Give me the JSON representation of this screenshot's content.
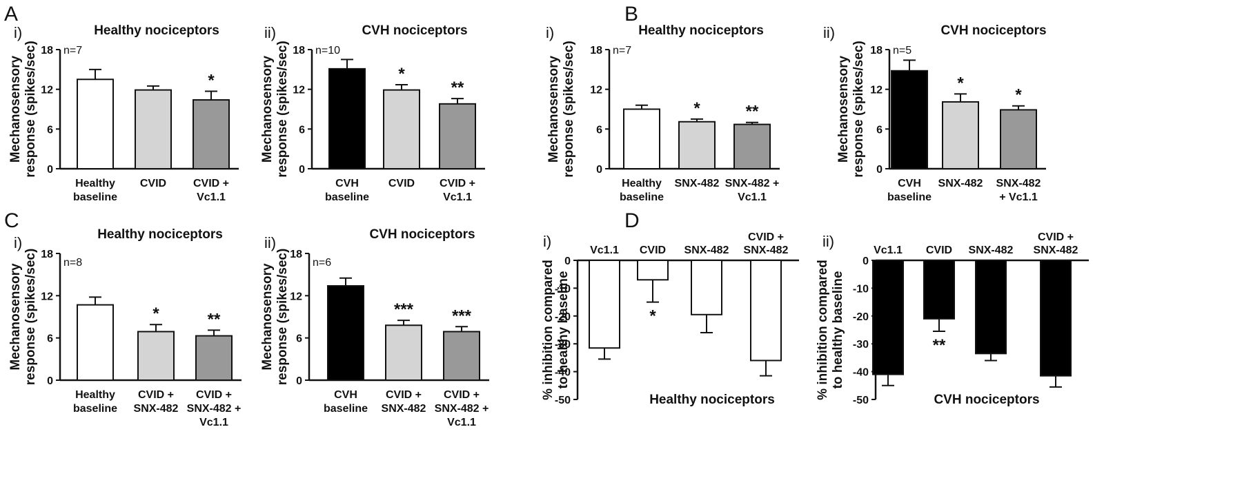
{
  "panel_letters": [
    "A",
    "B",
    "C",
    "D"
  ],
  "chart_data": [
    {
      "id": "A-i",
      "type": "bar",
      "panel": "A",
      "sub": "i)",
      "title": "Healthy nociceptors",
      "ylabel": [
        "Mechanosensory",
        "response (spikes/sec)"
      ],
      "ylim": [
        0,
        18
      ],
      "yticks": [
        0,
        6,
        12,
        18
      ],
      "n_label": "n=7",
      "categories": [
        [
          "Healthy",
          "baseline"
        ],
        [
          "CVID"
        ],
        [
          "CVID +",
          "Vc1.1"
        ]
      ],
      "values": [
        13.5,
        11.9,
        10.4
      ],
      "errors": [
        1.5,
        0.6,
        1.3
      ],
      "colors": [
        "#ffffff",
        "#d4d4d4",
        "#999999"
      ],
      "significance": [
        "",
        "",
        "*"
      ]
    },
    {
      "id": "A-ii",
      "type": "bar",
      "panel": "",
      "sub": "ii)",
      "title": "CVH nociceptors",
      "ylabel": [
        "Mechanosensory",
        "response (spikes/sec)"
      ],
      "ylim": [
        0,
        18
      ],
      "yticks": [
        0,
        6,
        12,
        18
      ],
      "n_label": "n=10",
      "categories": [
        [
          "CVH",
          "baseline"
        ],
        [
          "CVID"
        ],
        [
          "CVID +",
          "Vc1.1"
        ]
      ],
      "values": [
        15.1,
        11.9,
        9.8
      ],
      "errors": [
        1.4,
        0.8,
        0.8
      ],
      "colors": [
        "#000000",
        "#d4d4d4",
        "#999999"
      ],
      "significance": [
        "",
        "*",
        "**"
      ]
    },
    {
      "id": "B-i",
      "type": "bar",
      "panel": "B",
      "sub": "i)",
      "title": "Healthy nociceptors",
      "ylabel": [
        "Mechanosensory",
        "response (spikes/sec)"
      ],
      "ylim": [
        0,
        18
      ],
      "yticks": [
        0,
        6,
        12,
        18
      ],
      "n_label": "n=7",
      "categories": [
        [
          "Healthy",
          "baseline"
        ],
        [
          "SNX-482"
        ],
        [
          "SNX-482 +",
          "Vc1.1"
        ]
      ],
      "values": [
        9.0,
        7.1,
        6.7
      ],
      "errors": [
        0.6,
        0.4,
        0.3
      ],
      "colors": [
        "#ffffff",
        "#d4d4d4",
        "#999999"
      ],
      "significance": [
        "",
        "*",
        "**"
      ]
    },
    {
      "id": "B-ii",
      "type": "bar",
      "panel": "",
      "sub": "ii)",
      "title": "CVH nociceptors",
      "ylabel": [
        "Mechanosensory",
        "response (spikes/sec)"
      ],
      "ylim": [
        0,
        18
      ],
      "yticks": [
        0,
        6,
        12,
        18
      ],
      "n_label": "n=5",
      "categories": [
        [
          "CVH",
          "baseline"
        ],
        [
          "SNX-482"
        ],
        [
          "SNX-482",
          "+ Vc1.1"
        ]
      ],
      "values": [
        14.8,
        10.1,
        8.9
      ],
      "errors": [
        1.6,
        1.2,
        0.6
      ],
      "colors": [
        "#000000",
        "#d4d4d4",
        "#999999"
      ],
      "significance": [
        "",
        "*",
        "*"
      ]
    },
    {
      "id": "C-i",
      "type": "bar",
      "panel": "C",
      "sub": "i)",
      "title": "Healthy nociceptors",
      "ylabel": [
        "Mechanosensory",
        "response (spikes/sec)"
      ],
      "ylim": [
        0,
        18
      ],
      "yticks": [
        0,
        6,
        12,
        18
      ],
      "n_label": "n=8",
      "categories": [
        [
          "Healthy",
          "baseline"
        ],
        [
          "CVID +",
          "SNX-482"
        ],
        [
          "CVID +",
          "SNX-482 +",
          "Vc1.1"
        ]
      ],
      "values": [
        10.7,
        6.9,
        6.3
      ],
      "errors": [
        1.1,
        1.0,
        0.8
      ],
      "colors": [
        "#ffffff",
        "#d4d4d4",
        "#999999"
      ],
      "significance": [
        "",
        "*",
        "**"
      ]
    },
    {
      "id": "C-ii",
      "type": "bar",
      "panel": "",
      "sub": "ii)",
      "title": "CVH nociceptors",
      "ylabel": [
        "Mechanosensory",
        "response (spikes/sec)"
      ],
      "ylim": [
        0,
        18
      ],
      "yticks": [
        0,
        6,
        12,
        18
      ],
      "n_label": "n=6",
      "categories": [
        [
          "CVH",
          "baseline"
        ],
        [
          "CVID +",
          "SNX-482"
        ],
        [
          "CVID +",
          "SNX-482 +",
          "Vc1.1"
        ]
      ],
      "values": [
        13.4,
        7.8,
        6.9
      ],
      "errors": [
        1.1,
        0.7,
        0.7
      ],
      "colors": [
        "#000000",
        "#d4d4d4",
        "#999999"
      ],
      "significance": [
        "",
        "***",
        "***"
      ]
    },
    {
      "id": "D-i",
      "type": "bar",
      "panel": "D",
      "sub": "i)",
      "title": "Healthy nociceptors",
      "ylabel": [
        "% inhibition compared",
        "to healthy baseline"
      ],
      "ylim": [
        -50,
        0
      ],
      "yticks": [
        0,
        -10,
        -20,
        -30,
        -40,
        -50
      ],
      "n_label": "",
      "categories": [
        [
          "Vc1.1"
        ],
        [
          "CVID"
        ],
        [
          "SNX-482"
        ],
        [
          "CVID +",
          "SNX-482"
        ]
      ],
      "values": [
        -31.5,
        -7.0,
        -19.5,
        -36.0
      ],
      "errors": [
        4.0,
        8.0,
        6.5,
        5.5
      ],
      "colors": [
        "#ffffff",
        "#ffffff",
        "#ffffff",
        "#ffffff"
      ],
      "significance": [
        "",
        "*",
        "",
        ""
      ]
    },
    {
      "id": "D-ii",
      "type": "bar",
      "panel": "",
      "sub": "ii)",
      "title": "CVH nociceptors",
      "ylabel": [
        "% inhibition compared",
        "to healthy baseline"
      ],
      "ylim": [
        -50,
        0
      ],
      "yticks": [
        0,
        -10,
        -20,
        -30,
        -40,
        -50
      ],
      "n_label": "",
      "categories": [
        [
          "Vc1.1"
        ],
        [
          "CVID"
        ],
        [
          "SNX-482"
        ],
        [
          "CVID +",
          "SNX-482"
        ]
      ],
      "values": [
        -41.0,
        -21.0,
        -33.5,
        -41.5
      ],
      "errors": [
        4.0,
        4.5,
        2.5,
        4.0
      ],
      "colors": [
        "#000000",
        "#000000",
        "#000000",
        "#000000"
      ],
      "significance": [
        "",
        "**",
        "",
        ""
      ]
    }
  ]
}
